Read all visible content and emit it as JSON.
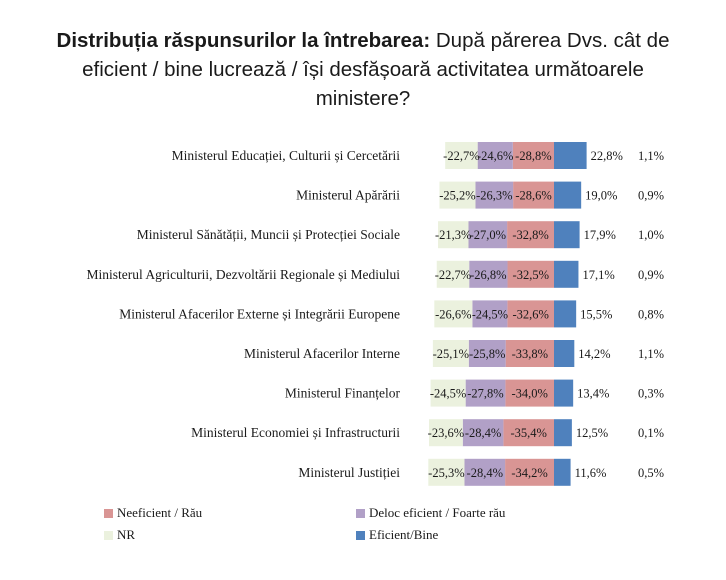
{
  "title": {
    "bold": "Distribuția răspunsurilor la întrebarea:",
    "rest": " După părerea Dvs. cât de eficient / bine lucrează / își desfășoară activitatea următoarele ministere?"
  },
  "colors": {
    "neeficient": "#d99594",
    "deloc": "#b1a0c7",
    "nr": "#ebf1de",
    "eficient": "#4f81bd"
  },
  "legend": {
    "neeficient": "Neeficient / Rău",
    "deloc": "Deloc eficient / Foarte rău",
    "nr": "NR",
    "eficient": "Eficient/Bine"
  },
  "chart_data": {
    "type": "bar",
    "orientation": "horizontal-diverging",
    "categories": [
      "Ministerul Educației, Culturii și Cercetării",
      "Ministerul Apărării",
      "Ministerul Sănătății, Muncii și Protecției Sociale",
      "Ministerul Agriculturii, Dezvoltării Regionale și Mediului",
      "Ministerul Afacerilor Externe și Integrării Europene",
      "Ministerul Afacerilor Interne",
      "Ministerul Finanțelor",
      "Ministerul Economiei și Infrastructurii",
      "Ministerul Justiției"
    ],
    "series": [
      {
        "name": "Neeficient / Rău",
        "key": "neeficient",
        "values": [
          -28.8,
          -28.6,
          -32.8,
          -32.5,
          -32.6,
          -33.8,
          -34.0,
          -35.4,
          -34.2
        ]
      },
      {
        "name": "Deloc eficient / Foarte rău",
        "key": "deloc",
        "values": [
          -24.6,
          -26.3,
          -27.0,
          -26.8,
          -24.5,
          -25.8,
          -27.8,
          -28.4,
          -28.4
        ]
      },
      {
        "name": "NR",
        "key": "nr",
        "values": [
          -22.7,
          -25.2,
          -21.3,
          -22.7,
          -26.6,
          -25.1,
          -24.5,
          -23.6,
          -25.3
        ]
      },
      {
        "name": "Eficient/Bine",
        "key": "eficient",
        "values": [
          22.8,
          19.0,
          17.9,
          17.1,
          15.5,
          14.2,
          13.4,
          12.5,
          11.6
        ]
      }
    ],
    "extra_labels": [
      "1,1%",
      "0,9%",
      "1,0%",
      "0,9%",
      "0,8%",
      "1,1%",
      "0,3%",
      "0,1%",
      "0,5%"
    ],
    "value_labels": {
      "neeficient": [
        "-28,8%",
        "-28,6%",
        "-32,8%",
        "-32,5%",
        "-32,6%",
        "-33,8%",
        "-34,0%",
        "-35,4%",
        "-34,2%"
      ],
      "deloc": [
        "-24,6%",
        "-26,3%",
        "-27,0%",
        "-26,8%",
        "-24,5%",
        "-25,8%",
        "-27,8%",
        "-28,4%",
        "-28,4%"
      ],
      "nr": [
        "-22,7%",
        "-25,2%",
        "-21,3%",
        "-22,7%",
        "-26,6%",
        "-25,1%",
        "-24,5%",
        "-23,6%",
        "-25,3%"
      ],
      "eficient": [
        "22,8%",
        "19,0%",
        "17,9%",
        "17,1%",
        "15,5%",
        "14,2%",
        "13,4%",
        "12,5%",
        "11,6%"
      ]
    },
    "grid": false,
    "legend_position": "bottom"
  }
}
